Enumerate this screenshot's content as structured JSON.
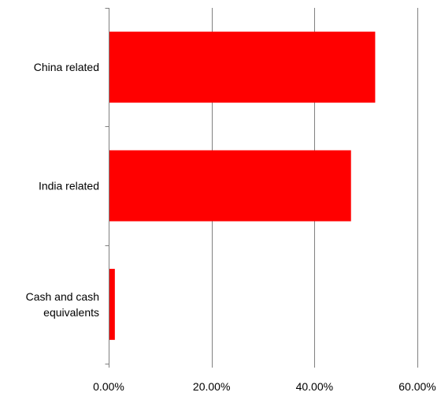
{
  "chart_data": {
    "type": "bar",
    "orientation": "horizontal",
    "categories": [
      "China related",
      "India related",
      "Cash and cash equivalents"
    ],
    "category_lines": [
      [
        "China related"
      ],
      [
        "India related"
      ],
      [
        "Cash and cash",
        "equivalents"
      ]
    ],
    "values": [
      0.518,
      0.471,
      0.012
    ],
    "title": "",
    "xlabel": "",
    "ylabel": "",
    "xlim": [
      0,
      0.6
    ],
    "x_ticks": [
      0,
      0.2,
      0.4,
      0.6
    ],
    "x_tick_labels": [
      "0.00%",
      "20.00%",
      "40.00%",
      "60.00%"
    ],
    "grid": "vertical",
    "legend": "none",
    "colors": {
      "bar": "#ff0000",
      "grid": "#808080",
      "axis": "#808080"
    }
  }
}
